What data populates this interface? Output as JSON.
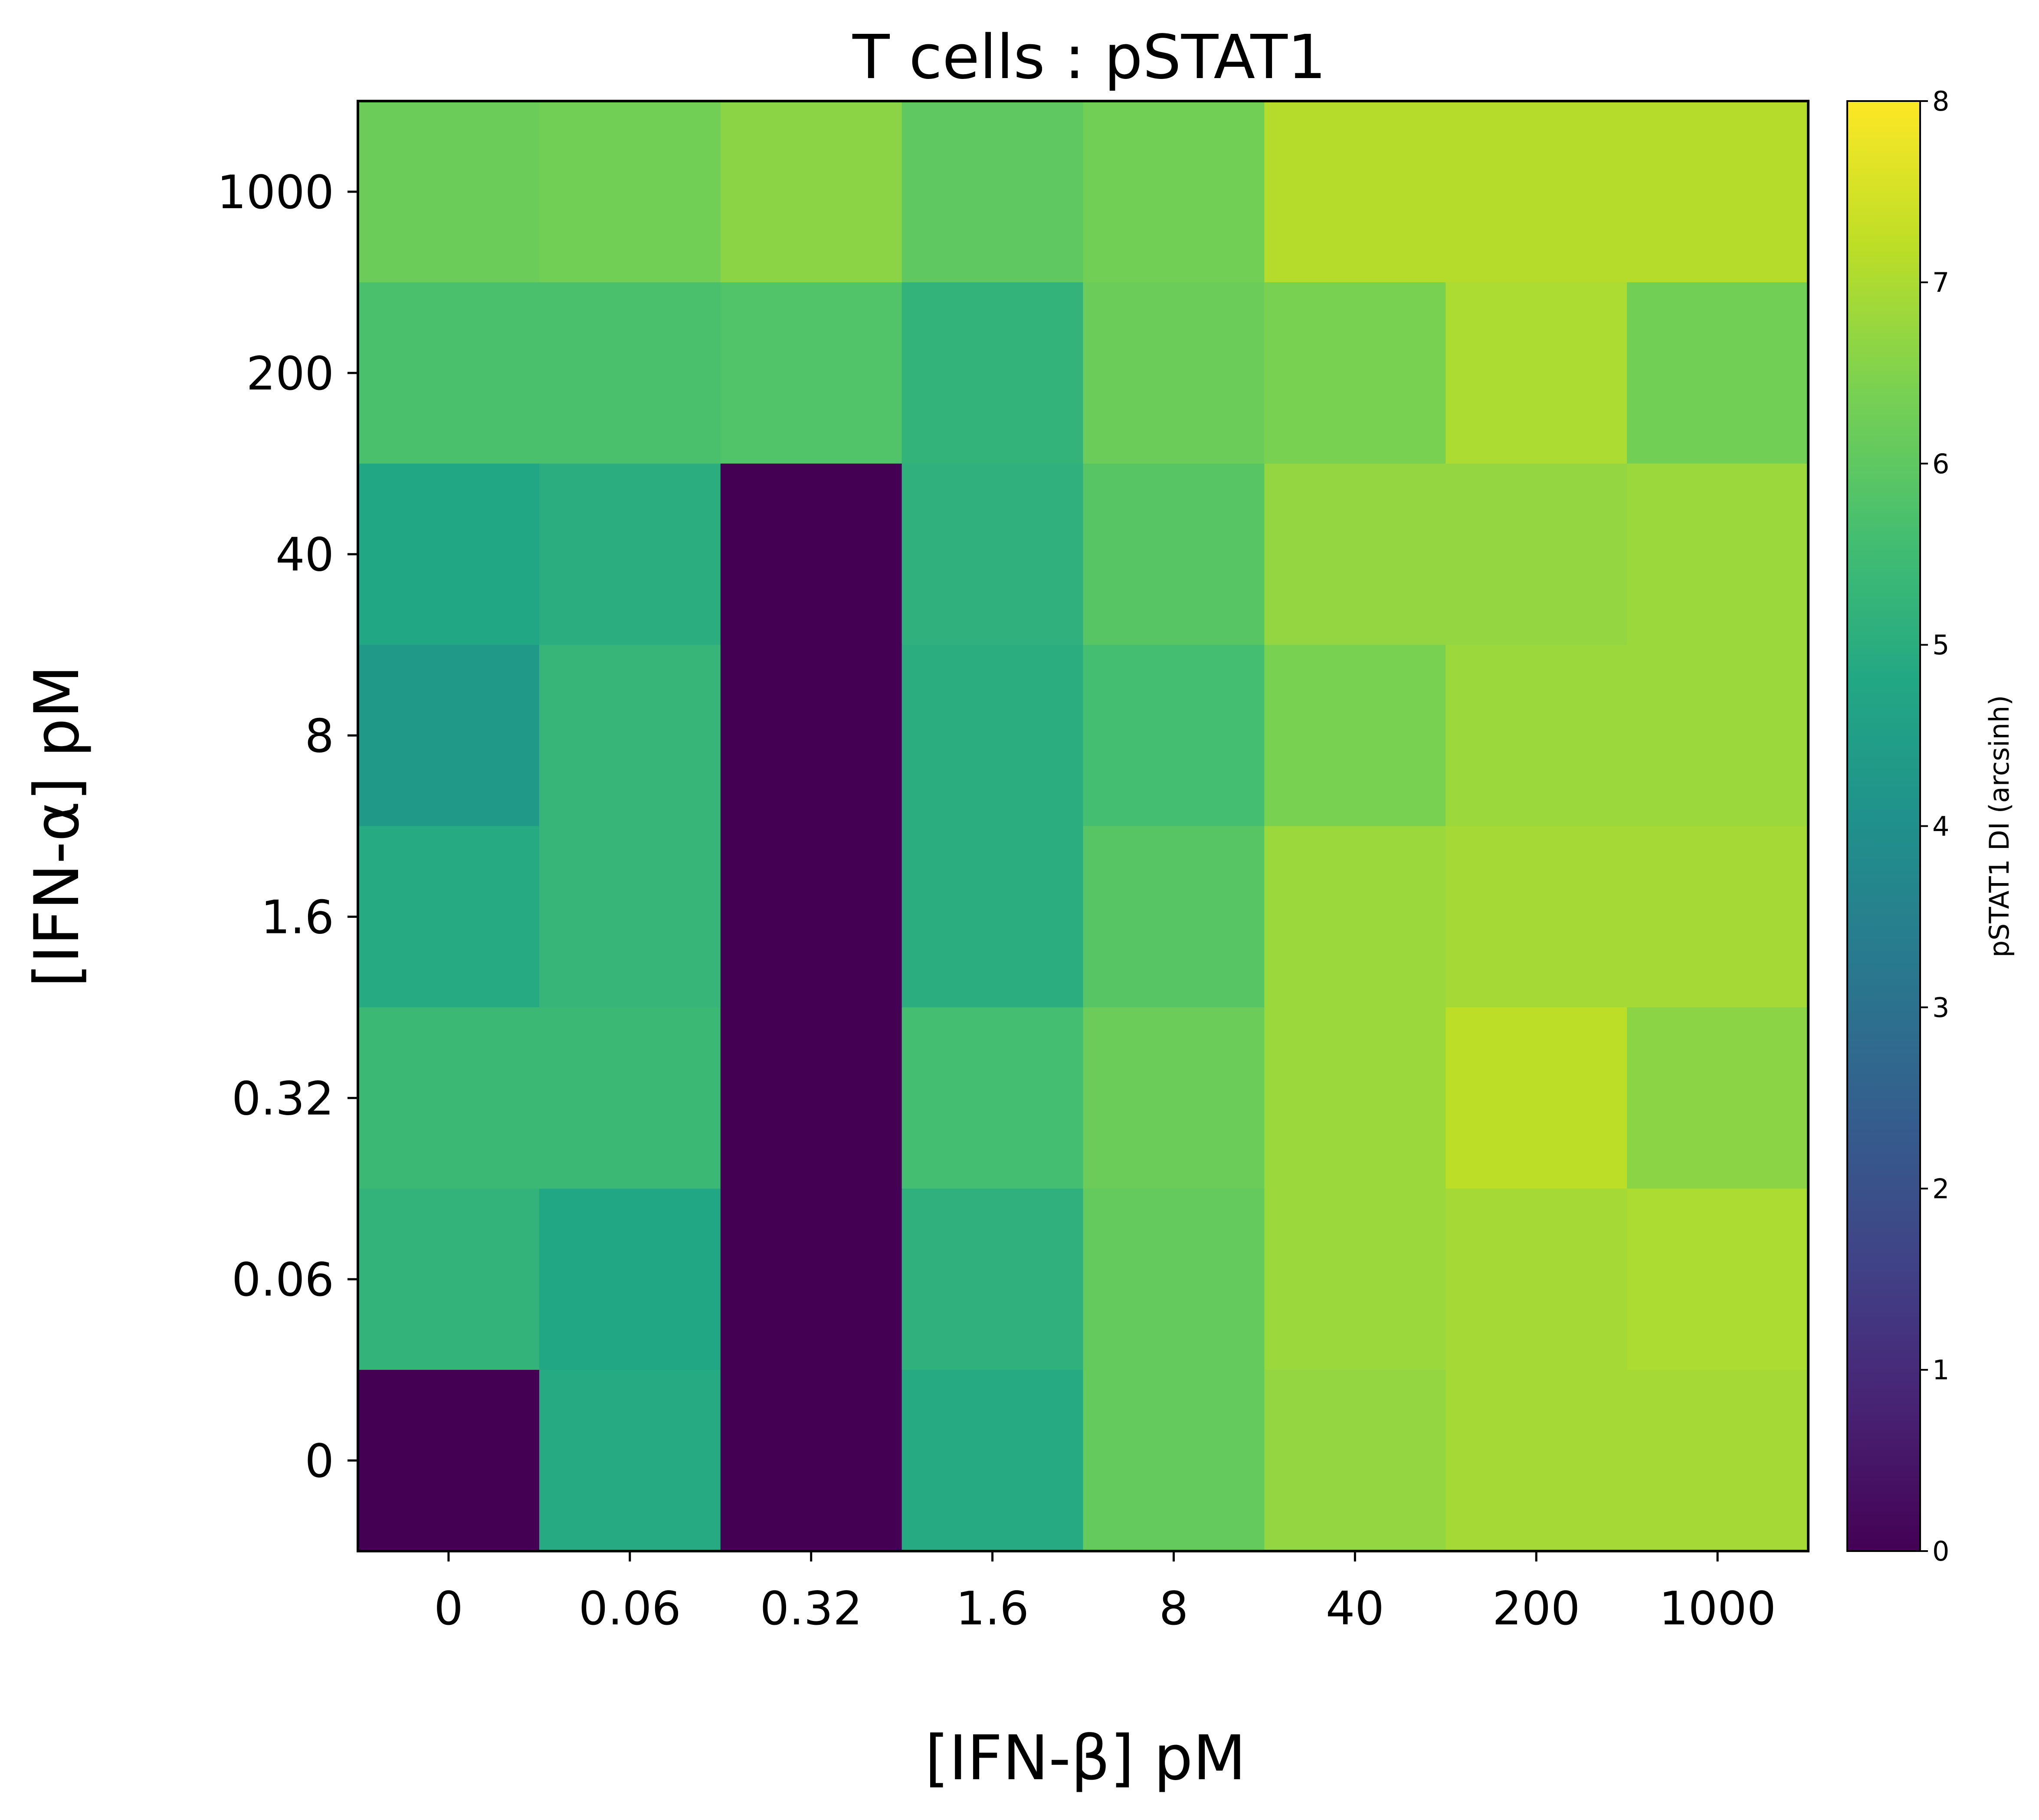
{
  "chart_data": {
    "type": "heatmap",
    "title": "T cells : pSTAT1",
    "xlabel": "[IFN-β] pM",
    "ylabel": "[IFN-α] pM",
    "x_categories": [
      "0",
      "0.06",
      "0.32",
      "1.6",
      "8",
      "40",
      "200",
      "1000"
    ],
    "y_categories": [
      "1000",
      "200",
      "40",
      "8",
      "1.6",
      "0.32",
      "0.06",
      "0"
    ],
    "values": [
      [
        6.2,
        6.3,
        6.6,
        6.0,
        6.3,
        7.1,
        7.1,
        7.1
      ],
      [
        5.7,
        5.7,
        5.8,
        5.2,
        6.2,
        6.4,
        7.0,
        6.3
      ],
      [
        4.8,
        5.0,
        0.0,
        5.1,
        5.9,
        6.7,
        6.7,
        6.8
      ],
      [
        4.3,
        5.3,
        0.0,
        5.0,
        5.6,
        6.4,
        6.8,
        6.8
      ],
      [
        4.9,
        5.3,
        0.0,
        5.0,
        5.9,
        6.8,
        6.9,
        6.9
      ],
      [
        5.4,
        5.4,
        0.0,
        5.6,
        6.2,
        6.8,
        7.2,
        6.6
      ],
      [
        5.2,
        4.8,
        0.0,
        5.1,
        6.1,
        6.8,
        6.9,
        7.0
      ],
      [
        0.0,
        4.9,
        0.0,
        4.9,
        6.1,
        6.7,
        6.9,
        6.9
      ]
    ],
    "colorbar": {
      "label": "pSTAT1 DI (arcsinh)",
      "colormap": "viridis",
      "range": [
        0,
        8
      ],
      "ticks": [
        "0",
        "1",
        "2",
        "3",
        "4",
        "5",
        "6",
        "7",
        "8"
      ]
    }
  }
}
